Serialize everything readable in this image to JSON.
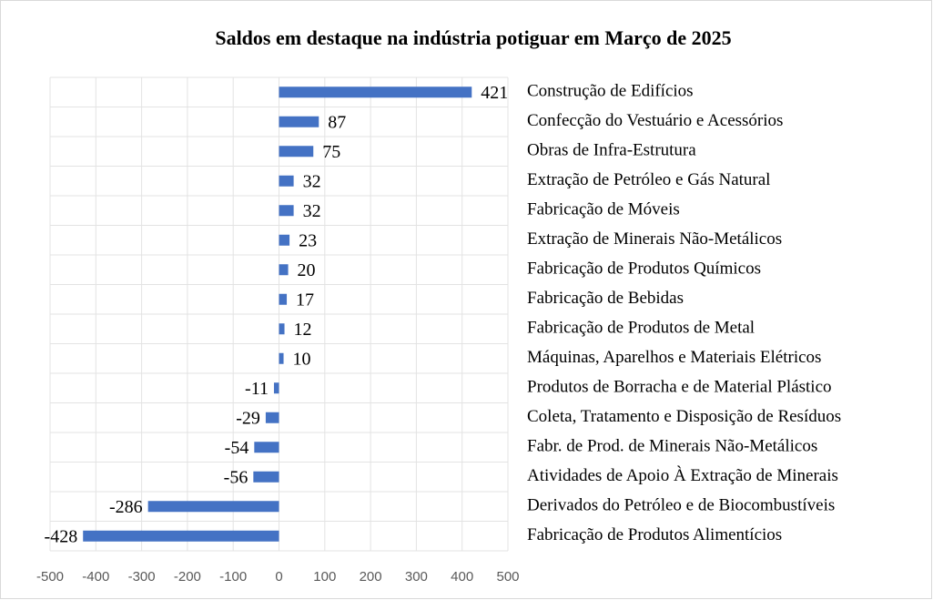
{
  "chart_data": {
    "type": "barh",
    "title": "Saldos em destaque na indústria potiguar em Março de 2025",
    "categories": [
      "Construção de Edifícios",
      "Confecção do Vestuário e Acessórios",
      "Obras de Infra-Estrutura",
      "Extração de Petróleo e Gás Natural",
      "Fabricação de Móveis",
      "Extração de Minerais Não-Metálicos",
      "Fabricação de Produtos Químicos",
      "Fabricação de Bebidas",
      "Fabricação de Produtos de Metal",
      "Máquinas, Aparelhos e Materiais Elétricos",
      "Produtos de Borracha e de Material Plástico",
      "Coleta, Tratamento e Disposição de Resíduos",
      "Fabr. de Prod. de Minerais Não-Metálicos",
      "Atividades de Apoio À Extração de Minerais",
      "Derivados do Petróleo e de Biocombustíveis",
      "Fabricação de Produtos Alimentícios"
    ],
    "values": [
      421,
      87,
      75,
      32,
      32,
      23,
      20,
      17,
      12,
      10,
      -11,
      -29,
      -54,
      -56,
      -286,
      -428
    ],
    "color": "#4472c4",
    "xlim": [
      -500,
      500
    ],
    "xticks": [
      -500,
      -400,
      -300,
      -200,
      -100,
      0,
      100,
      200,
      300,
      400,
      500
    ],
    "grid": true
  }
}
